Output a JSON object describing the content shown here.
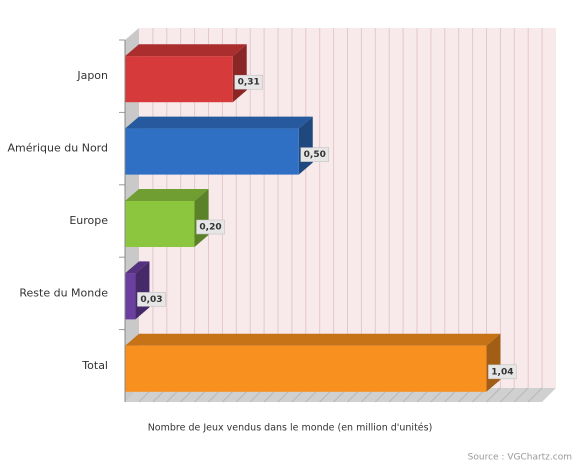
{
  "chart_data": {
    "type": "bar3d",
    "categories": [
      "Japon",
      "Amérique du Nord",
      "Europe",
      "Reste du Monde",
      "Total"
    ],
    "values": [
      0.31,
      0.5,
      0.2,
      0.03,
      1.04
    ],
    "value_labels": [
      "0,31",
      "0,50",
      "0,20",
      "0,03",
      "1,04"
    ],
    "colors": [
      "#d63a3a",
      "#2f6fc4",
      "#8cc63f",
      "#6a3fa0",
      "#f7901e"
    ],
    "xlim": [
      0,
      1.2
    ],
    "xlabel": "Nombre de Jeux vendus dans le monde (en million d'unités)",
    "source": "Source : VGChartz.com"
  }
}
